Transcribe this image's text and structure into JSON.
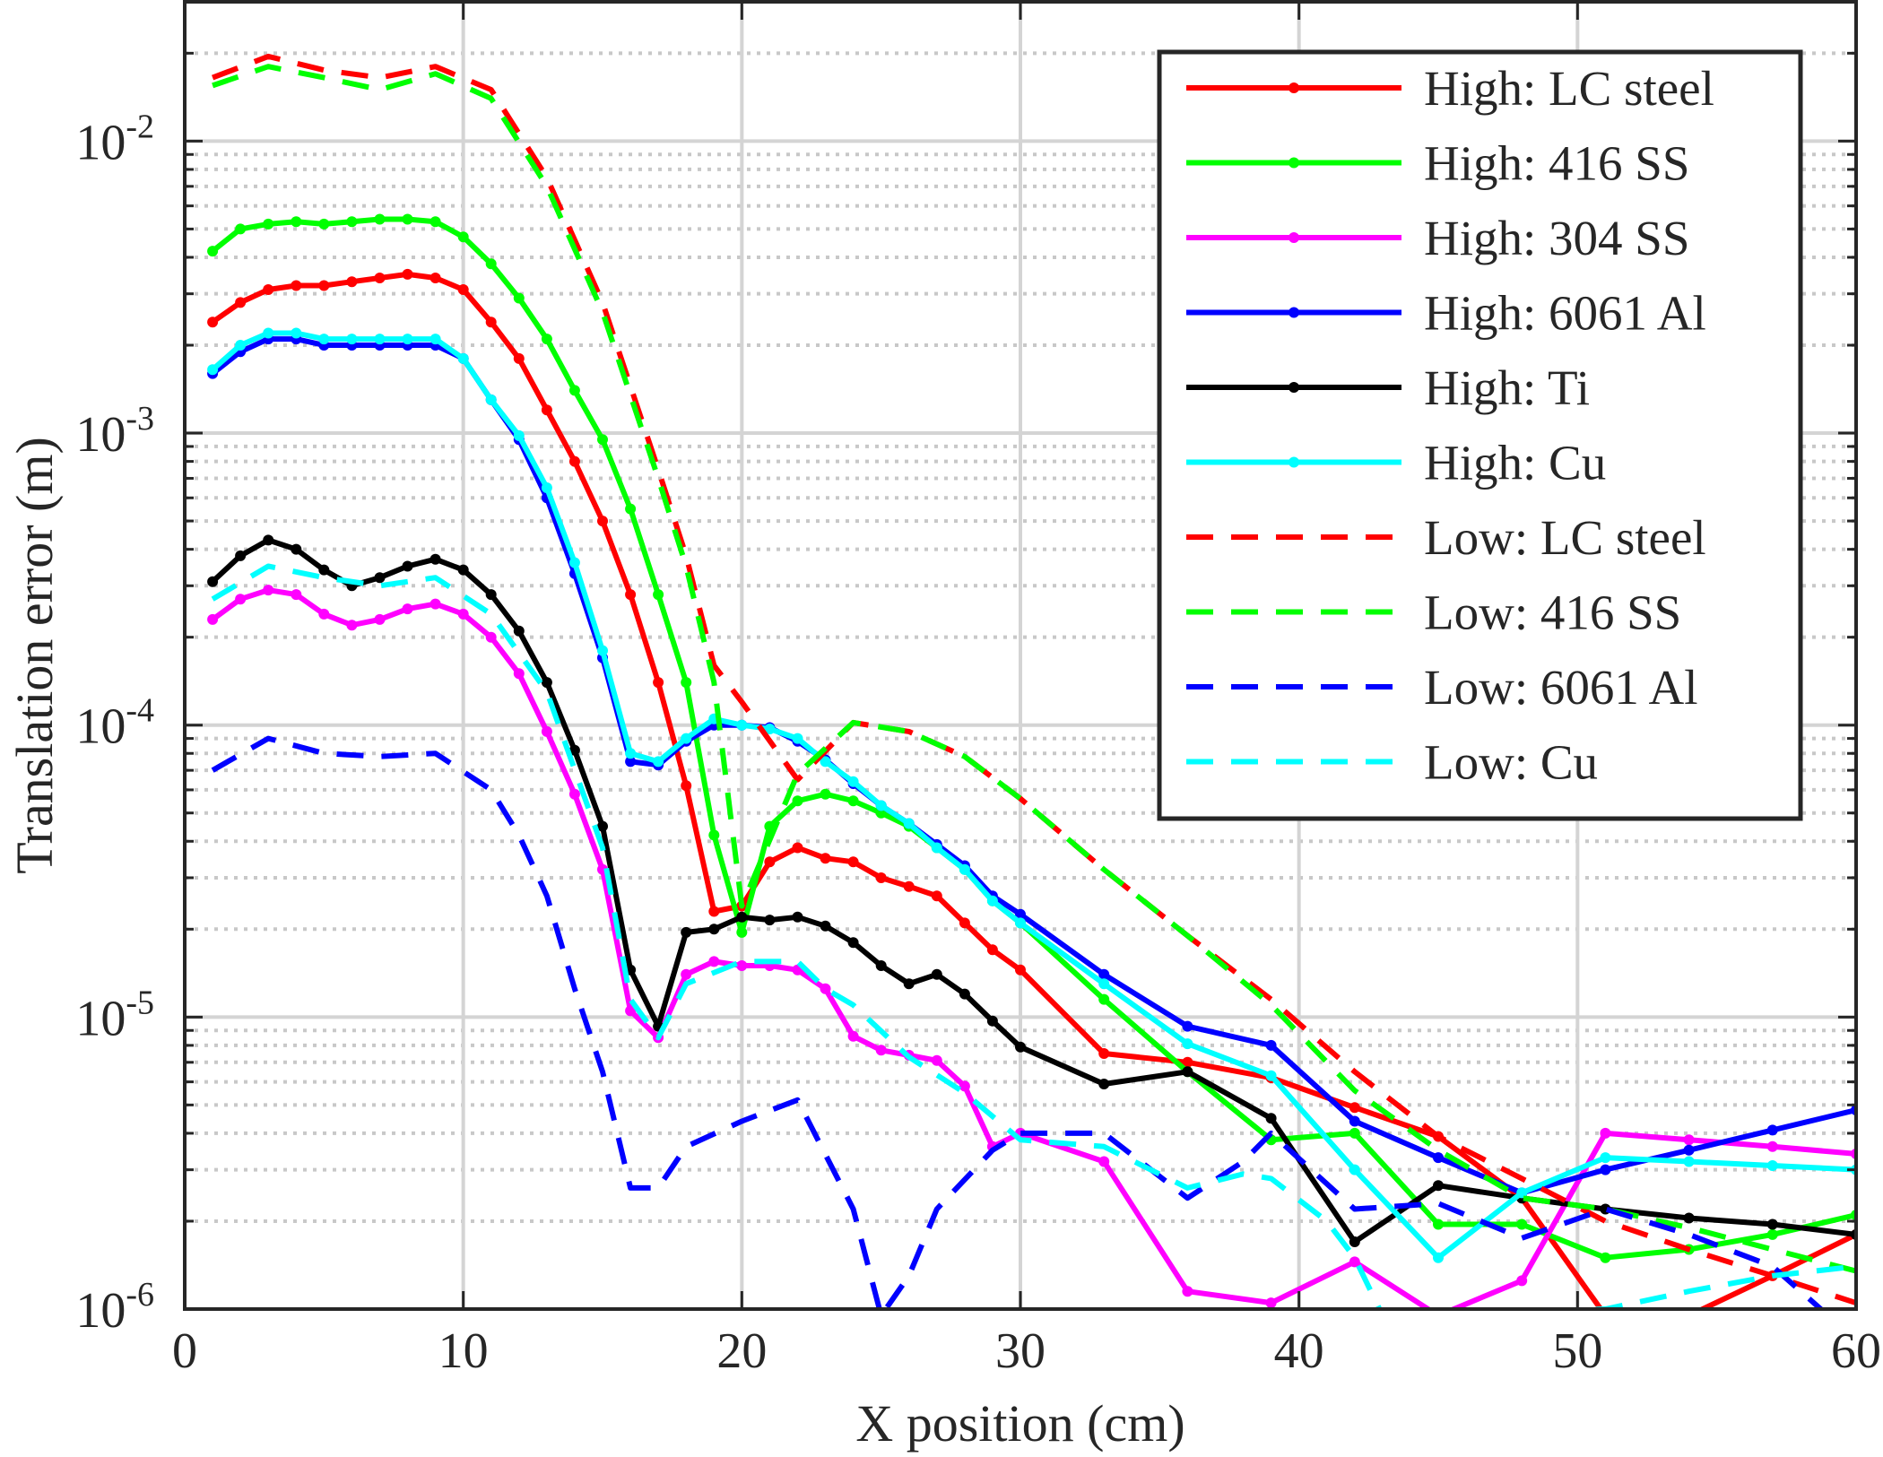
{
  "chart_data": {
    "type": "line",
    "title": "",
    "xlabel": "X position (cm)",
    "ylabel": "Translation error (m)",
    "xlim": [
      0,
      60
    ],
    "ylim": [
      1e-06,
      0.03
    ],
    "yscale": "log",
    "grid": true,
    "legend_position": "top-right",
    "x_ticks": [
      "0",
      "10",
      "20",
      "30",
      "40",
      "50",
      "60"
    ],
    "y_ticks": [
      {
        "base": "10",
        "exp": "-6",
        "value": 1e-06
      },
      {
        "base": "10",
        "exp": "-5",
        "value": 1e-05
      },
      {
        "base": "10",
        "exp": "-4",
        "value": 0.0001
      },
      {
        "base": "10",
        "exp": "-3",
        "value": 0.001
      },
      {
        "base": "10",
        "exp": "-2",
        "value": 0.01
      }
    ],
    "series": [
      {
        "name": "High: LC steel",
        "color": "#ff0000",
        "style": "solid-marker",
        "x": [
          1,
          2,
          3,
          4,
          5,
          6,
          7,
          8,
          9,
          10,
          11,
          12,
          13,
          14,
          15,
          16,
          17,
          18,
          19,
          20,
          21,
          22,
          23,
          24,
          25,
          26,
          27,
          28,
          29,
          30,
          33,
          36,
          39,
          42,
          45,
          48,
          51,
          54,
          57,
          60
        ],
        "y": [
          0.0024,
          0.0028,
          0.0031,
          0.0032,
          0.0032,
          0.0033,
          0.0034,
          0.0035,
          0.0034,
          0.0031,
          0.0024,
          0.0018,
          0.0012,
          0.0008,
          0.0005,
          0.00028,
          0.00014,
          6.2e-05,
          2.3e-05,
          2.4e-05,
          3.4e-05,
          3.8e-05,
          3.5e-05,
          3.4e-05,
          3e-05,
          2.8e-05,
          2.6e-05,
          2.1e-05,
          1.7e-05,
          1.45e-05,
          7.5e-06,
          7e-06,
          6.2e-06,
          4.9e-06,
          3.9e-06,
          2.4e-06,
          9.5e-07,
          9.5e-07,
          1.3e-06,
          1.8e-06
        ]
      },
      {
        "name": "High: 416 SS",
        "color": "#00ff00",
        "style": "solid-marker",
        "x": [
          1,
          2,
          3,
          4,
          5,
          6,
          7,
          8,
          9,
          10,
          11,
          12,
          13,
          14,
          15,
          16,
          17,
          18,
          19,
          20,
          21,
          22,
          23,
          24,
          25,
          26,
          27,
          28,
          29,
          30,
          33,
          36,
          39,
          42,
          45,
          48,
          51,
          54,
          57,
          60
        ],
        "y": [
          0.0042,
          0.005,
          0.0052,
          0.0053,
          0.0052,
          0.0053,
          0.0054,
          0.0054,
          0.0053,
          0.0047,
          0.0038,
          0.0029,
          0.0021,
          0.0014,
          0.00095,
          0.00055,
          0.00028,
          0.00014,
          4.2e-05,
          1.95e-05,
          4.5e-05,
          5.5e-05,
          5.8e-05,
          5.5e-05,
          5e-05,
          4.5e-05,
          3.8e-05,
          3.2e-05,
          2.5e-05,
          2.1e-05,
          1.15e-05,
          6.5e-06,
          3.8e-06,
          4e-06,
          1.95e-06,
          1.95e-06,
          1.5e-06,
          1.6e-06,
          1.8e-06,
          2.1e-06
        ]
      },
      {
        "name": "High: 304 SS",
        "color": "#ff00ff",
        "style": "solid-marker",
        "x": [
          1,
          2,
          3,
          4,
          5,
          6,
          7,
          8,
          9,
          10,
          11,
          12,
          13,
          14,
          15,
          16,
          17,
          18,
          19,
          20,
          21,
          22,
          23,
          24,
          25,
          26,
          27,
          28,
          29,
          30,
          33,
          36,
          39,
          42,
          45,
          48,
          51,
          54,
          57,
          60
        ],
        "y": [
          0.00023,
          0.00027,
          0.00029,
          0.00028,
          0.00024,
          0.00022,
          0.00023,
          0.00025,
          0.00026,
          0.00024,
          0.0002,
          0.00015,
          9.5e-05,
          5.8e-05,
          3.2e-05,
          1.05e-05,
          8.5e-06,
          1.4e-05,
          1.55e-05,
          1.5e-05,
          1.5e-05,
          1.45e-05,
          1.25e-05,
          8.6e-06,
          7.7e-06,
          7.4e-06,
          7.1e-06,
          5.8e-06,
          3.6e-06,
          4e-06,
          3.2e-06,
          1.15e-06,
          1.05e-06,
          1.45e-06,
          9.5e-07,
          1.25e-06,
          4e-06,
          3.8e-06,
          3.6e-06,
          3.4e-06
        ]
      },
      {
        "name": "High: 6061 Al",
        "color": "#0000ff",
        "style": "solid-marker",
        "x": [
          1,
          2,
          3,
          4,
          5,
          6,
          7,
          8,
          9,
          10,
          11,
          12,
          13,
          14,
          15,
          16,
          17,
          18,
          19,
          20,
          21,
          22,
          23,
          24,
          25,
          26,
          27,
          28,
          29,
          30,
          33,
          36,
          39,
          42,
          45,
          48,
          51,
          54,
          57,
          60
        ],
        "y": [
          0.0016,
          0.0019,
          0.0021,
          0.0021,
          0.002,
          0.002,
          0.002,
          0.002,
          0.002,
          0.0018,
          0.0013,
          0.00095,
          0.0006,
          0.00033,
          0.00017,
          7.5e-05,
          7.3e-05,
          8.8e-05,
          0.0001,
          0.0001,
          9.8e-05,
          8.8e-05,
          7.6e-05,
          6.3e-05,
          5.3e-05,
          4.6e-05,
          3.9e-05,
          3.3e-05,
          2.6e-05,
          2.25e-05,
          1.4e-05,
          9.3e-06,
          8e-06,
          4.4e-06,
          3.3e-06,
          2.5e-06,
          3e-06,
          3.5e-06,
          4.1e-06,
          4.8e-06
        ]
      },
      {
        "name": "High: Ti",
        "color": "#000000",
        "style": "solid-marker",
        "x": [
          1,
          2,
          3,
          4,
          5,
          6,
          7,
          8,
          9,
          10,
          11,
          12,
          13,
          14,
          15,
          16,
          17,
          18,
          19,
          20,
          21,
          22,
          23,
          24,
          25,
          26,
          27,
          28,
          29,
          30,
          33,
          36,
          39,
          42,
          45,
          48,
          51,
          54,
          57,
          60
        ],
        "y": [
          0.00031,
          0.00038,
          0.00043,
          0.0004,
          0.00034,
          0.0003,
          0.00032,
          0.00035,
          0.00037,
          0.00034,
          0.00028,
          0.00021,
          0.00014,
          8.2e-05,
          4.5e-05,
          1.45e-05,
          9.3e-06,
          1.95e-05,
          2e-05,
          2.2e-05,
          2.15e-05,
          2.2e-05,
          2.05e-05,
          1.8e-05,
          1.5e-05,
          1.3e-05,
          1.4e-05,
          1.2e-05,
          9.7e-06,
          7.9e-06,
          5.9e-06,
          6.5e-06,
          4.5e-06,
          1.7e-06,
          2.65e-06,
          2.4e-06,
          2.2e-06,
          2.05e-06,
          1.95e-06,
          1.8e-06
        ]
      },
      {
        "name": "High: Cu",
        "color": "#00ffff",
        "style": "solid-marker",
        "x": [
          1,
          2,
          3,
          4,
          5,
          6,
          7,
          8,
          9,
          10,
          11,
          12,
          13,
          14,
          15,
          16,
          17,
          18,
          19,
          20,
          21,
          22,
          23,
          24,
          25,
          26,
          27,
          28,
          29,
          30,
          33,
          36,
          39,
          42,
          45,
          48,
          51,
          54,
          57,
          60
        ],
        "y": [
          0.00165,
          0.002,
          0.0022,
          0.0022,
          0.0021,
          0.0021,
          0.0021,
          0.0021,
          0.0021,
          0.0018,
          0.0013,
          0.00098,
          0.00065,
          0.00036,
          0.00018,
          8e-05,
          7.5e-05,
          9e-05,
          0.000105,
          0.0001,
          9.7e-05,
          9e-05,
          7.5e-05,
          6.4e-05,
          5.3e-05,
          4.6e-05,
          3.8e-05,
          3.2e-05,
          2.5e-05,
          2.1e-05,
          1.3e-05,
          8.1e-06,
          6.3e-06,
          3e-06,
          1.5e-06,
          2.5e-06,
          3.3e-06,
          3.2e-06,
          3.1e-06,
          3e-06
        ]
      },
      {
        "name": "Low: LC steel",
        "color": "#ff0000",
        "style": "dashed",
        "x": [
          1,
          3,
          5,
          7,
          9,
          11,
          13,
          15,
          17,
          18,
          19,
          20,
          22,
          24,
          26,
          28,
          30,
          33,
          36,
          39,
          42,
          45,
          48,
          51,
          54,
          57,
          60
        ],
        "y": [
          0.0165,
          0.0195,
          0.0175,
          0.0165,
          0.018,
          0.015,
          0.0075,
          0.0028,
          0.00075,
          0.00038,
          0.00016,
          0.00012,
          6.5e-05,
          0.000102,
          9.5e-05,
          7.8e-05,
          5.6e-05,
          3.2e-05,
          1.9e-05,
          1.15e-05,
          6.5e-06,
          3.9e-06,
          2.8e-06,
          2e-06,
          1.6e-06,
          1.3e-06,
          1.05e-06
        ]
      },
      {
        "name": "Low: 416 SS",
        "color": "#00ff00",
        "style": "dashed",
        "x": [
          1,
          3,
          5,
          7,
          9,
          11,
          13,
          15,
          17,
          18,
          19,
          20,
          22,
          24,
          26,
          28,
          30,
          33,
          36,
          39,
          42,
          45,
          48,
          51,
          54,
          57,
          60
        ],
        "y": [
          0.0155,
          0.018,
          0.0165,
          0.015,
          0.017,
          0.014,
          0.007,
          0.0026,
          0.0007,
          0.00035,
          0.00014,
          2.4e-05,
          6.8e-05,
          0.000102,
          9.5e-05,
          7.8e-05,
          5.6e-05,
          3.2e-05,
          1.9e-05,
          1.1e-05,
          5.6e-06,
          3.5e-06,
          2.4e-06,
          2.2e-06,
          1.9e-06,
          1.6e-06,
          1.35e-06
        ]
      },
      {
        "name": "Low: 6061 Al",
        "color": "#0000ff",
        "style": "dashed",
        "x": [
          1,
          3,
          5,
          7,
          9,
          11,
          12,
          13,
          14,
          15,
          16,
          17,
          18,
          20,
          22,
          24,
          25,
          26,
          27,
          29,
          30,
          33,
          36,
          38,
          39,
          42,
          45,
          48,
          51,
          54,
          57,
          59
        ],
        "y": [
          7e-05,
          9e-05,
          8e-05,
          7.8e-05,
          8e-05,
          6e-05,
          4.2e-05,
          2.6e-05,
          1.25e-05,
          6.5e-06,
          2.6e-06,
          2.6e-06,
          3.6e-06,
          4.4e-06,
          5.2e-06,
          2.2e-06,
          9.5e-07,
          1.3e-06,
          2.2e-06,
          3.5e-06,
          4e-06,
          4e-06,
          2.4e-06,
          3.2e-06,
          4e-06,
          2.2e-06,
          2.3e-06,
          1.75e-06,
          2.2e-06,
          1.8e-06,
          1.4e-06,
          9.5e-07
        ]
      },
      {
        "name": "Low: Cu",
        "color": "#00ffff",
        "style": "dashed",
        "x": [
          1,
          3,
          5,
          7,
          9,
          11,
          13,
          15,
          16,
          17,
          18,
          20,
          22,
          23,
          24,
          26,
          28,
          30,
          33,
          36,
          38,
          39,
          41,
          42,
          43,
          51,
          54,
          57,
          60
        ],
        "y": [
          0.00027,
          0.00035,
          0.00032,
          0.0003,
          0.00032,
          0.00024,
          0.00013,
          3.8e-05,
          1.15e-05,
          8.5e-06,
          1.3e-05,
          1.55e-05,
          1.55e-05,
          1.25e-05,
          1.1e-05,
          7.3e-06,
          5.5e-06,
          3.8e-06,
          3.6e-06,
          2.6e-06,
          2.9e-06,
          2.8e-06,
          2e-06,
          1.5e-06,
          9.5e-07,
          1e-06,
          1.15e-06,
          1.3e-06,
          1.4e-06
        ]
      }
    ]
  }
}
